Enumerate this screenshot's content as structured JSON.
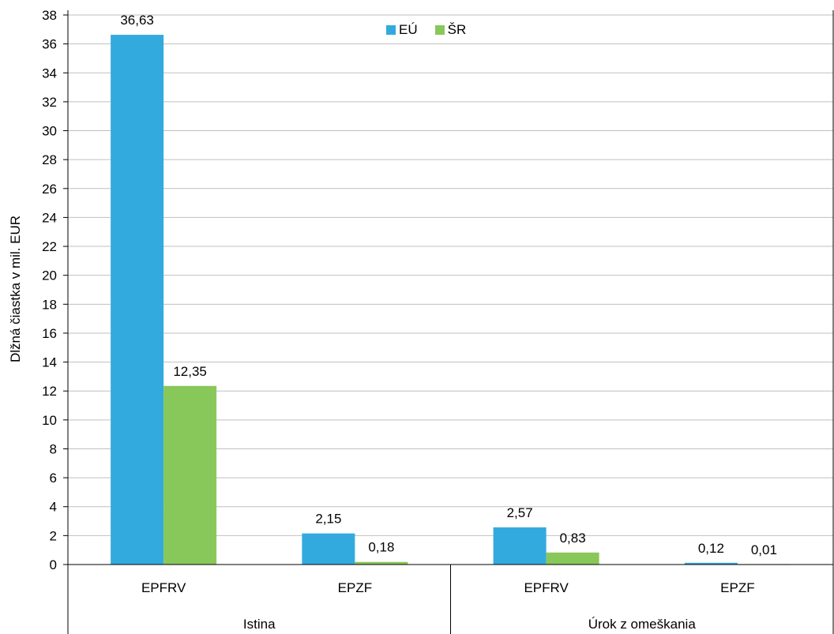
{
  "chart_data": {
    "type": "bar",
    "ylabel": "Dlžná čiastka v mil. EUR",
    "ylim": [
      0,
      38
    ],
    "yticks": [
      "0",
      "2",
      "4",
      "6",
      "8",
      "10",
      "12",
      "14",
      "16",
      "18",
      "20",
      "22",
      "24",
      "26",
      "28",
      "30",
      "32",
      "34",
      "36",
      "38"
    ],
    "grid": true,
    "legend_position": "top-center",
    "groups": [
      {
        "label": "Istina",
        "categories": [
          "EPFRV",
          "EPZF"
        ]
      },
      {
        "label": "Úrok z omeškania",
        "categories": [
          "EPFRV",
          "EPZF"
        ]
      }
    ],
    "series": [
      {
        "name": "EÚ",
        "color": "#33aadd",
        "values": [
          36.63,
          2.15,
          2.57,
          0.12
        ],
        "labels": [
          "36,63",
          "2,15",
          "2,57",
          "0,12"
        ]
      },
      {
        "name": "ŠR",
        "color": "#88c85a",
        "values": [
          12.35,
          0.18,
          0.83,
          0.01
        ],
        "labels": [
          "12,35",
          "0,18",
          "0,83",
          "0,01"
        ]
      }
    ]
  }
}
